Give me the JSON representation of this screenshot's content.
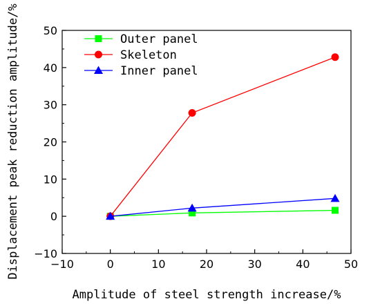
{
  "chart_data": {
    "type": "line",
    "title": "",
    "xlabel": "Amplitude of steel strength increase/%",
    "ylabel": "Displacement peak reduction amplitude/%",
    "xlim": [
      -10,
      50
    ],
    "ylim": [
      -10,
      50
    ],
    "x_ticks": [
      -10,
      0,
      10,
      20,
      30,
      40,
      50
    ],
    "y_ticks": [
      -10,
      0,
      10,
      20,
      30,
      40,
      50
    ],
    "grid": false,
    "legend_position": "top-left",
    "series": [
      {
        "name": "Outer panel",
        "color": "#00ff00",
        "marker": "square",
        "x": [
          0,
          17,
          46.7
        ],
        "y": [
          0,
          0.9,
          1.6
        ]
      },
      {
        "name": "Skeleton",
        "color": "#ff0000",
        "marker": "circle",
        "x": [
          0,
          17,
          46.7
        ],
        "y": [
          0,
          27.8,
          42.8
        ]
      },
      {
        "name": "Inner panel",
        "color": "#0000ff",
        "marker": "triangle",
        "x": [
          0,
          17,
          46.7
        ],
        "y": [
          0,
          2.2,
          4.8
        ]
      }
    ]
  }
}
